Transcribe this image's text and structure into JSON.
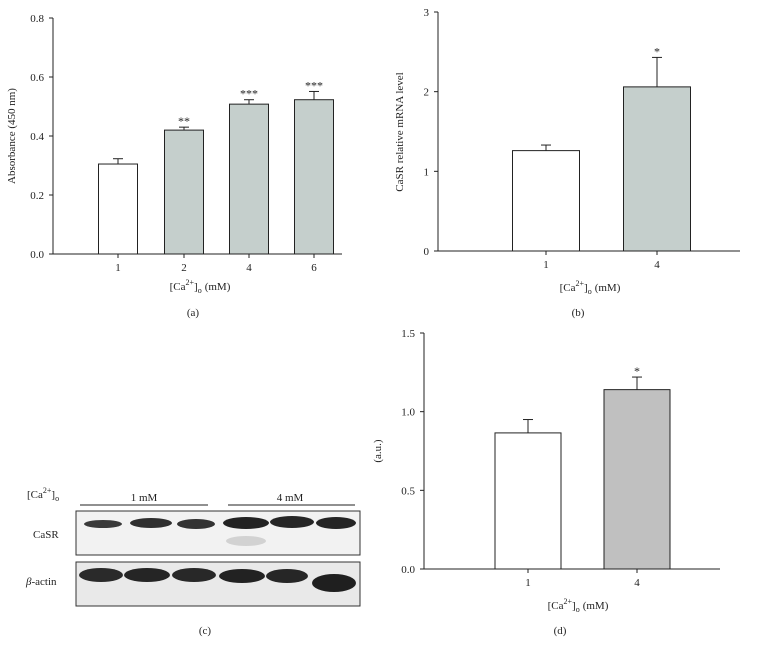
{
  "chart_data": [
    {
      "panel": "(a)",
      "type": "bar",
      "categories": [
        "1",
        "2",
        "4",
        "6"
      ],
      "values": [
        0.305,
        0.42,
        0.508,
        0.523
      ],
      "errors": [
        0.018,
        0.01,
        0.015,
        0.028
      ],
      "significance": [
        "",
        "**",
        "***",
        "***"
      ],
      "fills": [
        "#ffffff",
        "#c5cfcc",
        "#c5cfcc",
        "#c5cfcc"
      ],
      "ylabel": "Absorbance (450 nm)",
      "xlabel_main": "[Ca",
      "xlabel_sup": "2+",
      "xlabel_close": "]",
      "xlabel_sub": "o",
      "xlabel_unit": "(mM)",
      "ylim": [
        0,
        0.8
      ],
      "yticks": [
        "0.0",
        "0.2",
        "0.4",
        "0.6",
        "0.8"
      ],
      "ytick_values": [
        0,
        0.2,
        0.4,
        0.6,
        0.8
      ]
    },
    {
      "panel": "(b)",
      "type": "bar",
      "categories": [
        "1",
        "4"
      ],
      "values": [
        1.26,
        2.06
      ],
      "errors": [
        0.07,
        0.37
      ],
      "significance": [
        "",
        "*"
      ],
      "fills": [
        "#ffffff",
        "#c5cfcc"
      ],
      "ylabel": "CaSR relative mRNA level",
      "xlabel_main": "[Ca",
      "xlabel_sup": "2+",
      "xlabel_close": "]",
      "xlabel_sub": "o",
      "xlabel_unit": "(mM)",
      "ylim": [
        0,
        3
      ],
      "yticks": [
        "0",
        "1",
        "2",
        "3"
      ],
      "ytick_values": [
        0,
        1,
        2,
        3
      ]
    },
    {
      "panel": "(d)",
      "type": "bar",
      "categories": [
        "1",
        "4"
      ],
      "values": [
        0.865,
        1.14
      ],
      "errors": [
        0.085,
        0.08
      ],
      "significance": [
        "",
        "*"
      ],
      "fills": [
        "#ffffff",
        "#c0c0c0"
      ],
      "ylabel": "(a.u.)",
      "xlabel_main": "[Ca",
      "xlabel_sup": "2+",
      "xlabel_close": "]",
      "xlabel_sub": "o",
      "xlabel_unit": "(mM)",
      "ylim": [
        0,
        1.5
      ],
      "yticks": [
        "0.0",
        "0.5",
        "1.0",
        "1.5"
      ],
      "ytick_values": [
        0,
        0.5,
        1.0,
        1.5
      ]
    }
  ],
  "blot": {
    "panel": "(c)",
    "header_main": "[Ca",
    "header_sup": "2+",
    "header_close": "]",
    "header_sub": "o",
    "group1": "1 mM",
    "group2": "4 mM",
    "row1_label": "CaSR",
    "row2_label_italic": "β",
    "row2_label_rest": "-actin"
  }
}
